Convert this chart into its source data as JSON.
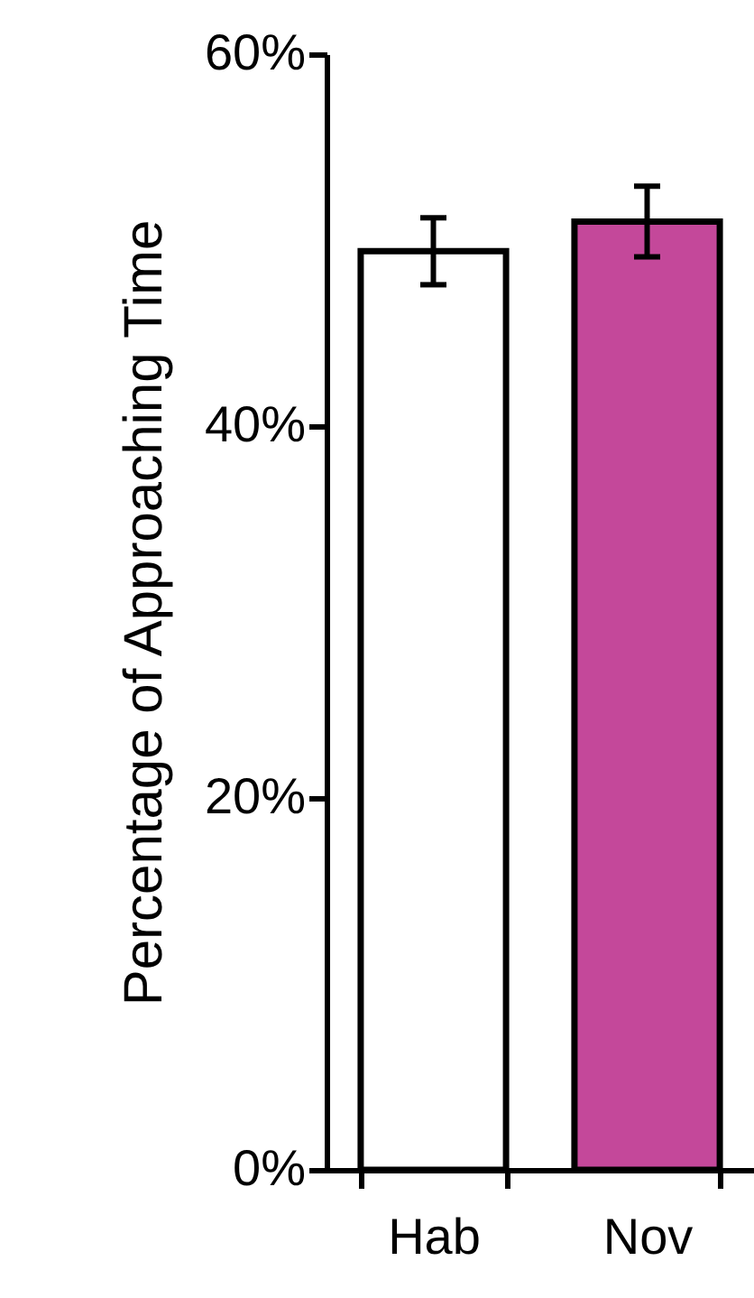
{
  "chart_data": {
    "type": "bar",
    "ylabel": "Percentage of Approaching Time",
    "categories": [
      "Hab",
      "Nov"
    ],
    "values": [
      49.4,
      51.0
    ],
    "colors": [
      "#ffffff",
      "#c4489a"
    ],
    "errors": [
      1.8,
      1.9
    ],
    "ylim": [
      0,
      60
    ],
    "yticks": [
      {
        "value": 0,
        "label": "0%"
      },
      {
        "value": 20,
        "label": "20%"
      },
      {
        "value": 40,
        "label": "40%"
      },
      {
        "value": 60,
        "label": "60%"
      }
    ],
    "grid": false
  }
}
